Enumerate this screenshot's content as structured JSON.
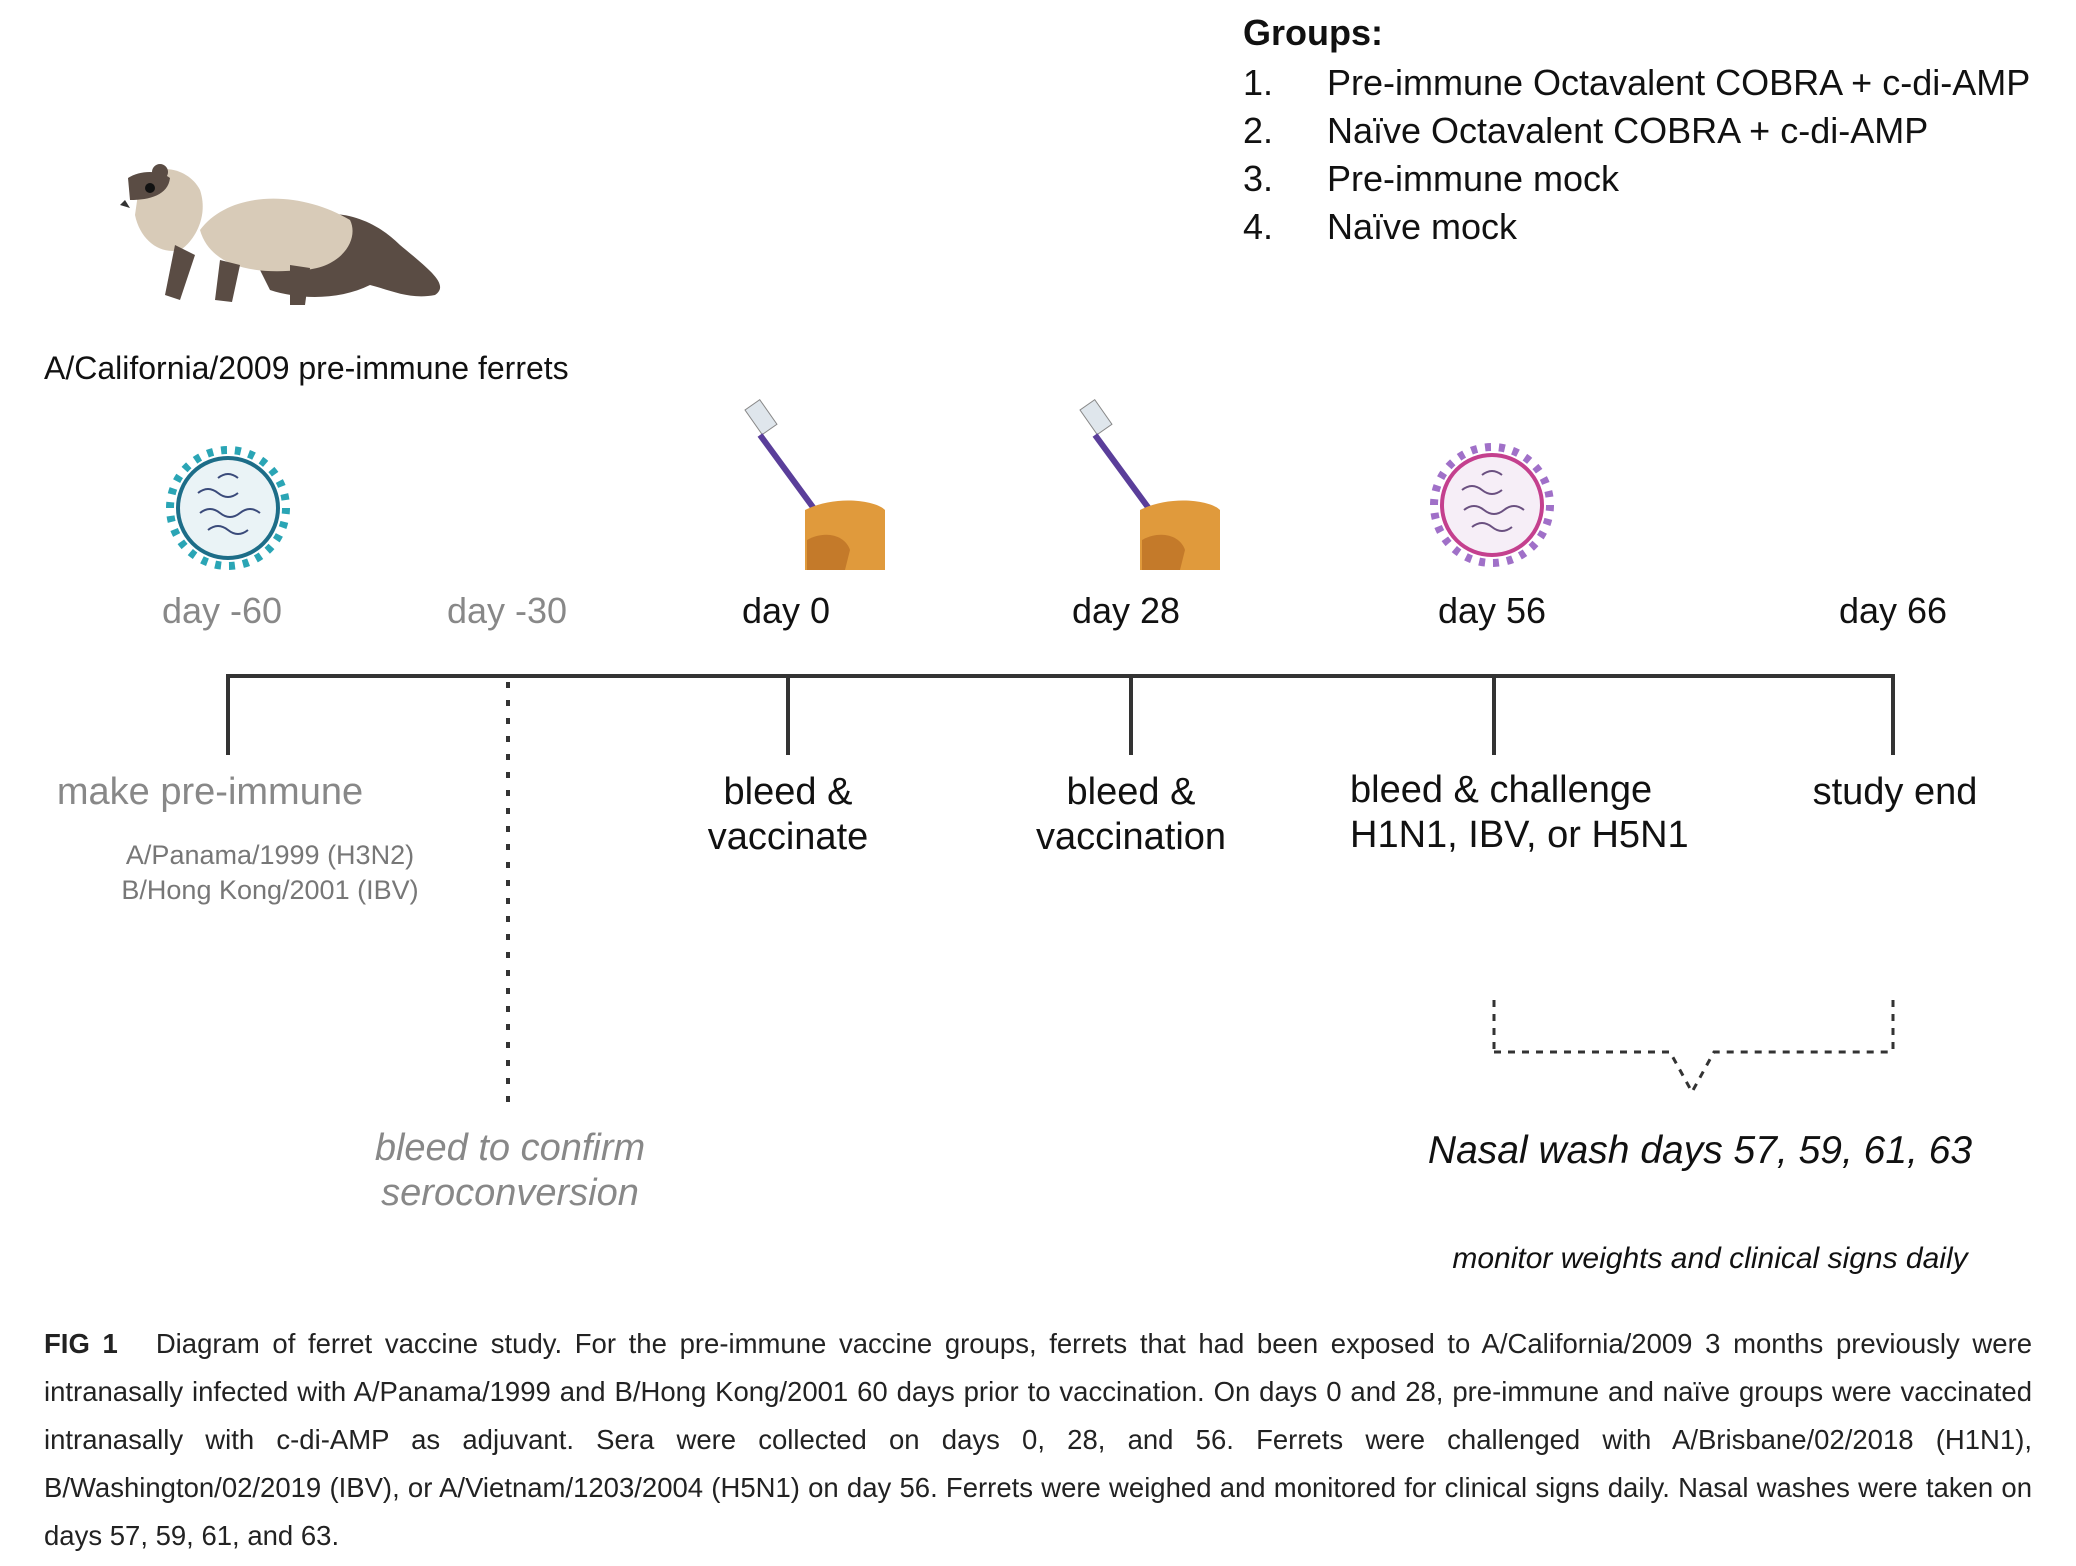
{
  "groups": {
    "title": "Groups:",
    "items": [
      {
        "num": "1.",
        "label": "Pre-immune Octavalent COBRA + c-di-AMP"
      },
      {
        "num": "2.",
        "label": "Naïve Octavalent COBRA + c-di-AMP"
      },
      {
        "num": "3.",
        "label": "Pre-immune mock"
      },
      {
        "num": "4.",
        "label": "Naïve mock"
      }
    ]
  },
  "ferret_caption": "A/California/2009 pre-immune ferrets",
  "timeline": {
    "days": [
      "day -60",
      "day -30",
      "day 0",
      "day 28",
      "day 56",
      "day 66"
    ],
    "events": {
      "make_pre_immune": "make pre-immune",
      "strain_1": "A/Panama/1999 (H3N2)",
      "strain_2": "B/Hong Kong/2001 (IBV)",
      "bleed_confirm_1": "bleed to confirm",
      "bleed_confirm_2": "seroconversion",
      "bleed_vaccinate_1": "bleed &",
      "bleed_vaccinate_2": "vaccinate",
      "bleed_vaccination_1": "bleed &",
      "bleed_vaccination_2": "vaccination",
      "bleed_challenge_1": "bleed & challenge",
      "bleed_challenge_2": "H1N1, IBV, or H5N1",
      "study_end": "study end",
      "nasal_wash": "Nasal wash days 57, 59, 61, 63",
      "monitor": "monitor weights and clinical signs daily"
    }
  },
  "caption": {
    "label": "FIG 1",
    "text": "Diagram of ferret vaccine study. For the pre-immune vaccine groups, ferrets that had been exposed to A/California/2009 3 months previously were intranasally infected with A/Panama/1999 and B/Hong Kong/2001 60 days prior to vaccination. On days 0 and 28, pre-immune and naïve groups were vaccinated intranasally with c-di-AMP as adjuvant. Sera were collected on days 0, 28, and 56. Ferrets were challenged with A/Brisbane/02/2018 (H1N1), B/Washington/02/2019 (IBV), or A/Vietnam/1203/2004 (H5N1) on day 56. Ferrets were weighed and monitored for clinical signs daily. Nasal washes were taken on days 57, 59, 61, and 63."
  },
  "colors": {
    "line": "#333333",
    "grey_text": "#888888",
    "virus_teal": "#2aa5b5",
    "virus_purple": "#a070c8",
    "ferret_body": "#d8cbb8",
    "ferret_dark": "#5a4c44",
    "hand": "#e09a3c",
    "pipette": "#5a3e9a"
  },
  "icons": [
    "ferret-illustration",
    "teal-virus-icon",
    "pipette-vaccine-icon",
    "purple-virus-icon"
  ]
}
